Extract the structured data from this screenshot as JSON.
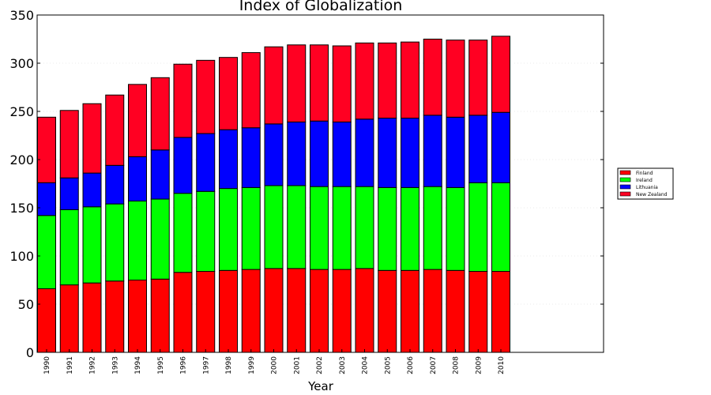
{
  "chart_data": {
    "type": "bar",
    "stacked": true,
    "title": "Index of Globalization",
    "xlabel": "Year",
    "ylabel": "",
    "ylim": [
      0,
      350
    ],
    "yticks": [
      0,
      50,
      100,
      150,
      200,
      250,
      300,
      350
    ],
    "grid": true,
    "legend_position": "right",
    "categories": [
      "1990",
      "1991",
      "1992",
      "1993",
      "1994",
      "1995",
      "1996",
      "1997",
      "1998",
      "1999",
      "2000",
      "2001",
      "2002",
      "2003",
      "2004",
      "2005",
      "2006",
      "2007",
      "2008",
      "2009",
      "2010"
    ],
    "series": [
      {
        "name": "Finland",
        "color": "#ff0000",
        "values": [
          66,
          70,
          72,
          74,
          75,
          76,
          83,
          84,
          85,
          86,
          87,
          87,
          86,
          86,
          87,
          85,
          85,
          86,
          85,
          84,
          84
        ]
      },
      {
        "name": "Ireland",
        "color": "#00ff00",
        "values": [
          76,
          78,
          79,
          80,
          82,
          83,
          82,
          83,
          85,
          85,
          86,
          86,
          86,
          86,
          85,
          86,
          86,
          86,
          86,
          92,
          92
        ]
      },
      {
        "name": "Lithuania",
        "color": "#0000ff",
        "values": [
          34,
          33,
          35,
          40,
          46,
          51,
          58,
          60,
          61,
          62,
          64,
          66,
          68,
          67,
          70,
          72,
          72,
          74,
          73,
          70,
          73
        ]
      },
      {
        "name": "New Zealand",
        "color": "#ff0022",
        "values": [
          68,
          70,
          72,
          73,
          75,
          75,
          76,
          76,
          75,
          78,
          80,
          80,
          79,
          79,
          79,
          78,
          79,
          79,
          80,
          78,
          79
        ]
      }
    ]
  }
}
